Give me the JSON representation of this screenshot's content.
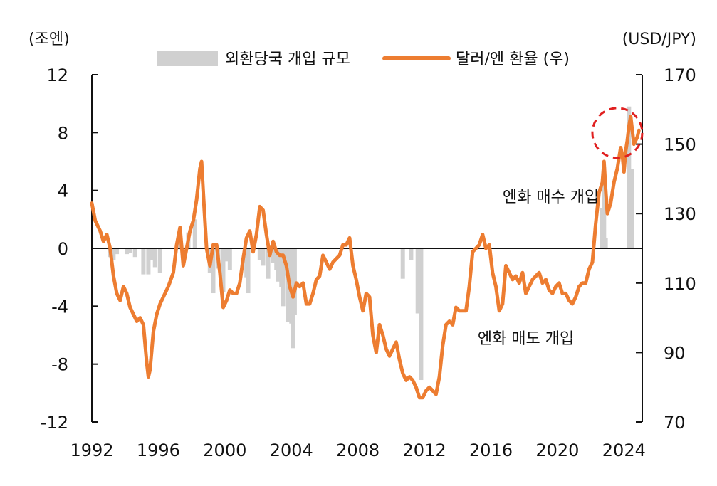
{
  "chart_data": {
    "type": "bar+line",
    "left_unit": "(조엔)",
    "right_unit": "(USD/JPY)",
    "legend": [
      {
        "name": "외환당국 개입 규모",
        "kind": "bar",
        "color": "#d0d0d0"
      },
      {
        "name": "달러/엔 환율 (우)",
        "kind": "line",
        "color": "#ed7d31"
      }
    ],
    "left_ylim": [
      -12,
      12
    ],
    "left_ticks": [
      12,
      8,
      4,
      0,
      -4,
      -8,
      -12
    ],
    "right_ylim": [
      70,
      170
    ],
    "right_ticks": [
      170,
      150,
      130,
      110,
      90,
      70
    ],
    "xlim": [
      1992,
      2024.5
    ],
    "x_ticks": [
      1992,
      1996,
      2000,
      2004,
      2008,
      2012,
      2016,
      2020,
      2024
    ],
    "annotations": [
      {
        "text": "엔화 매수 개입",
        "x": 2019.6,
        "y": 3.6
      },
      {
        "text": "엔화 매도 개입",
        "x": 2018.1,
        "y": -6.2
      }
    ],
    "highlight_circle": {
      "x": 2023.6,
      "y": 152
    },
    "intervention_bars": [
      {
        "x": 1993.1,
        "v": -0.6
      },
      {
        "x": 1993.3,
        "v": -0.8
      },
      {
        "x": 1993.5,
        "v": -0.4
      },
      {
        "x": 1994.1,
        "v": -0.4
      },
      {
        "x": 1994.3,
        "v": -0.3
      },
      {
        "x": 1994.6,
        "v": -0.6
      },
      {
        "x": 1995.1,
        "v": -1.8
      },
      {
        "x": 1995.4,
        "v": -1.8
      },
      {
        "x": 1995.6,
        "v": -0.8
      },
      {
        "x": 1995.8,
        "v": -1.3
      },
      {
        "x": 1996.1,
        "v": -1.7
      },
      {
        "x": 1997.3,
        "v": 0.6
      },
      {
        "x": 1997.8,
        "v": 1.1
      },
      {
        "x": 1998.2,
        "v": 2.0
      },
      {
        "x": 1999.1,
        "v": -1.7
      },
      {
        "x": 1999.3,
        "v": -3.1
      },
      {
        "x": 1999.6,
        "v": -1.4
      },
      {
        "x": 1999.9,
        "v": -3.0
      },
      {
        "x": 2000.1,
        "v": -0.9
      },
      {
        "x": 2000.3,
        "v": -1.5
      },
      {
        "x": 2001.3,
        "v": -2.0
      },
      {
        "x": 2001.4,
        "v": -3.1
      },
      {
        "x": 2002.1,
        "v": -0.8
      },
      {
        "x": 2002.3,
        "v": -1.2
      },
      {
        "x": 2002.6,
        "v": -2.1
      },
      {
        "x": 2002.9,
        "v": -1.0
      },
      {
        "x": 2003.1,
        "v": -1.5
      },
      {
        "x": 2003.2,
        "v": -2.3
      },
      {
        "x": 2003.4,
        "v": -2.7
      },
      {
        "x": 2003.5,
        "v": -4.0
      },
      {
        "x": 2003.7,
        "v": -1.9
      },
      {
        "x": 2003.8,
        "v": -5.1
      },
      {
        "x": 2003.9,
        "v": -1.9
      },
      {
        "x": 2004.0,
        "v": -5.2
      },
      {
        "x": 2004.1,
        "v": -6.9
      },
      {
        "x": 2004.2,
        "v": -4.6
      },
      {
        "x": 2010.7,
        "v": -2.1
      },
      {
        "x": 2011.2,
        "v": -0.8
      },
      {
        "x": 2011.6,
        "v": -4.5
      },
      {
        "x": 2011.8,
        "v": -9.1
      },
      {
        "x": 2022.7,
        "v": 2.8
      },
      {
        "x": 2022.8,
        "v": 5.6
      },
      {
        "x": 2022.9,
        "v": 0.7
      },
      {
        "x": 2024.3,
        "v": 9.8
      },
      {
        "x": 2024.5,
        "v": 5.5
      }
    ],
    "usdjpy": [
      [
        1992.0,
        133
      ],
      [
        1992.2,
        128
      ],
      [
        1992.5,
        125
      ],
      [
        1992.7,
        122
      ],
      [
        1992.9,
        124
      ],
      [
        1993.1,
        120
      ],
      [
        1993.3,
        112
      ],
      [
        1993.5,
        107
      ],
      [
        1993.7,
        105
      ],
      [
        1993.9,
        109
      ],
      [
        1994.1,
        107
      ],
      [
        1994.3,
        103
      ],
      [
        1994.5,
        101
      ],
      [
        1994.7,
        99
      ],
      [
        1994.9,
        100
      ],
      [
        1995.1,
        98
      ],
      [
        1995.3,
        87
      ],
      [
        1995.4,
        83
      ],
      [
        1995.5,
        85
      ],
      [
        1995.7,
        96
      ],
      [
        1995.9,
        101
      ],
      [
        1996.1,
        104
      ],
      [
        1996.3,
        106
      ],
      [
        1996.6,
        109
      ],
      [
        1996.9,
        113
      ],
      [
        1997.1,
        121
      ],
      [
        1997.3,
        126
      ],
      [
        1997.5,
        115
      ],
      [
        1997.7,
        120
      ],
      [
        1997.9,
        125
      ],
      [
        1998.1,
        128
      ],
      [
        1998.3,
        134
      ],
      [
        1998.5,
        143
      ],
      [
        1998.6,
        145
      ],
      [
        1998.7,
        136
      ],
      [
        1998.9,
        120
      ],
      [
        1999.1,
        115
      ],
      [
        1999.3,
        121
      ],
      [
        1999.5,
        121
      ],
      [
        1999.7,
        113
      ],
      [
        1999.9,
        103
      ],
      [
        2000.1,
        105
      ],
      [
        2000.3,
        108
      ],
      [
        2000.5,
        107
      ],
      [
        2000.7,
        107
      ],
      [
        2000.9,
        110
      ],
      [
        2001.1,
        117
      ],
      [
        2001.3,
        123
      ],
      [
        2001.5,
        125
      ],
      [
        2001.7,
        119
      ],
      [
        2001.9,
        124
      ],
      [
        2002.1,
        132
      ],
      [
        2002.3,
        131
      ],
      [
        2002.5,
        124
      ],
      [
        2002.7,
        118
      ],
      [
        2002.9,
        122
      ],
      [
        2003.1,
        119
      ],
      [
        2003.3,
        118
      ],
      [
        2003.5,
        118
      ],
      [
        2003.7,
        115
      ],
      [
        2003.9,
        109
      ],
      [
        2004.1,
        106
      ],
      [
        2004.3,
        110
      ],
      [
        2004.5,
        109
      ],
      [
        2004.7,
        110
      ],
      [
        2004.9,
        104
      ],
      [
        2005.1,
        104
      ],
      [
        2005.3,
        107
      ],
      [
        2005.5,
        111
      ],
      [
        2005.7,
        112
      ],
      [
        2005.9,
        118
      ],
      [
        2006.1,
        116
      ],
      [
        2006.3,
        114
      ],
      [
        2006.5,
        116
      ],
      [
        2006.7,
        117
      ],
      [
        2006.9,
        118
      ],
      [
        2007.1,
        121
      ],
      [
        2007.3,
        121
      ],
      [
        2007.5,
        123
      ],
      [
        2007.7,
        115
      ],
      [
        2007.9,
        111
      ],
      [
        2008.1,
        106
      ],
      [
        2008.3,
        102
      ],
      [
        2008.5,
        107
      ],
      [
        2008.7,
        106
      ],
      [
        2008.9,
        95
      ],
      [
        2009.1,
        90
      ],
      [
        2009.3,
        98
      ],
      [
        2009.5,
        95
      ],
      [
        2009.7,
        91
      ],
      [
        2009.9,
        89
      ],
      [
        2010.1,
        91
      ],
      [
        2010.3,
        93
      ],
      [
        2010.5,
        88
      ],
      [
        2010.7,
        84
      ],
      [
        2010.9,
        82
      ],
      [
        2011.1,
        83
      ],
      [
        2011.3,
        82
      ],
      [
        2011.5,
        80
      ],
      [
        2011.7,
        77
      ],
      [
        2011.9,
        77
      ],
      [
        2012.1,
        79
      ],
      [
        2012.3,
        80
      ],
      [
        2012.5,
        79
      ],
      [
        2012.7,
        78
      ],
      [
        2012.9,
        83
      ],
      [
        2013.1,
        92
      ],
      [
        2013.3,
        98
      ],
      [
        2013.5,
        99
      ],
      [
        2013.7,
        98
      ],
      [
        2013.9,
        103
      ],
      [
        2014.1,
        102
      ],
      [
        2014.3,
        102
      ],
      [
        2014.5,
        102
      ],
      [
        2014.7,
        109
      ],
      [
        2014.9,
        119
      ],
      [
        2015.1,
        120
      ],
      [
        2015.3,
        121
      ],
      [
        2015.5,
        124
      ],
      [
        2015.7,
        120
      ],
      [
        2015.9,
        121
      ],
      [
        2016.1,
        113
      ],
      [
        2016.3,
        109
      ],
      [
        2016.5,
        102
      ],
      [
        2016.7,
        104
      ],
      [
        2016.9,
        115
      ],
      [
        2017.1,
        113
      ],
      [
        2017.3,
        111
      ],
      [
        2017.5,
        112
      ],
      [
        2017.7,
        110
      ],
      [
        2017.9,
        113
      ],
      [
        2018.1,
        107
      ],
      [
        2018.3,
        109
      ],
      [
        2018.5,
        111
      ],
      [
        2018.7,
        112
      ],
      [
        2018.9,
        113
      ],
      [
        2019.1,
        110
      ],
      [
        2019.3,
        111
      ],
      [
        2019.5,
        108
      ],
      [
        2019.7,
        107
      ],
      [
        2019.9,
        109
      ],
      [
        2020.1,
        110
      ],
      [
        2020.3,
        107
      ],
      [
        2020.5,
        107
      ],
      [
        2020.7,
        105
      ],
      [
        2020.9,
        104
      ],
      [
        2021.1,
        106
      ],
      [
        2021.3,
        109
      ],
      [
        2021.5,
        110
      ],
      [
        2021.7,
        110
      ],
      [
        2021.9,
        114
      ],
      [
        2022.1,
        116
      ],
      [
        2022.3,
        127
      ],
      [
        2022.5,
        136
      ],
      [
        2022.7,
        139
      ],
      [
        2022.8,
        145
      ],
      [
        2022.9,
        137
      ],
      [
        2023.0,
        130
      ],
      [
        2023.2,
        133
      ],
      [
        2023.4,
        139
      ],
      [
        2023.6,
        143
      ],
      [
        2023.8,
        149
      ],
      [
        2023.9,
        147
      ],
      [
        2024.0,
        142
      ],
      [
        2024.1,
        148
      ],
      [
        2024.2,
        151
      ],
      [
        2024.3,
        155
      ],
      [
        2024.4,
        158
      ],
      [
        2024.5,
        154
      ],
      [
        2024.6,
        150
      ],
      [
        2024.8,
        152
      ],
      [
        2024.9,
        154
      ]
    ]
  }
}
